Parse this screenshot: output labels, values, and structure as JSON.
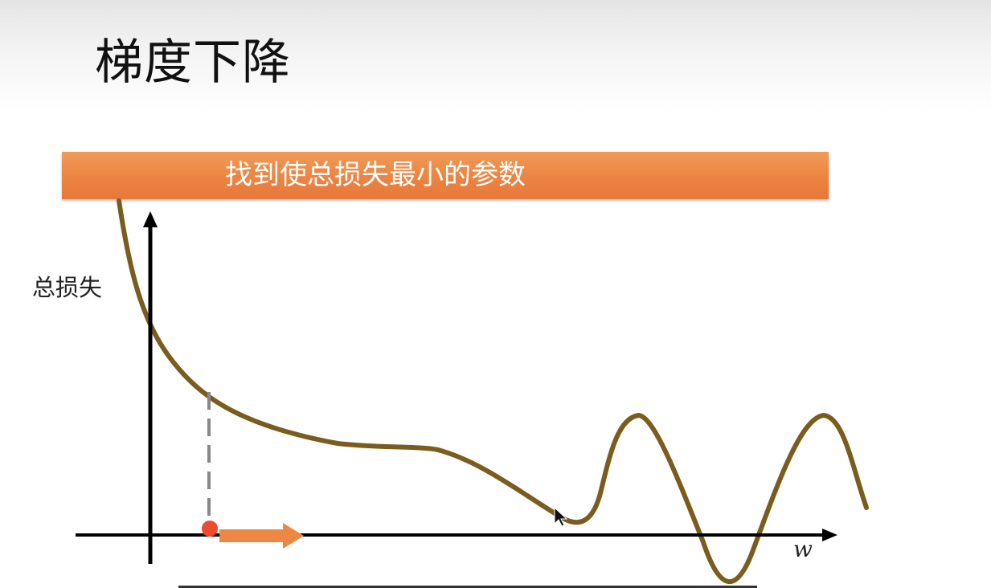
{
  "slide": {
    "title": "梯度下降",
    "banner_text": "找到使总损失最小的参数"
  },
  "axes": {
    "y_label": "总损失",
    "x_label": "w"
  },
  "colors": {
    "banner": "#ec8442",
    "curve": "#7a5c1e",
    "axis": "#000000",
    "guide_line": "#888888",
    "start_point": "#f04a2c",
    "arrow": "#ee8644"
  },
  "icons": {
    "cursor": "mouse-pointer-icon"
  }
}
